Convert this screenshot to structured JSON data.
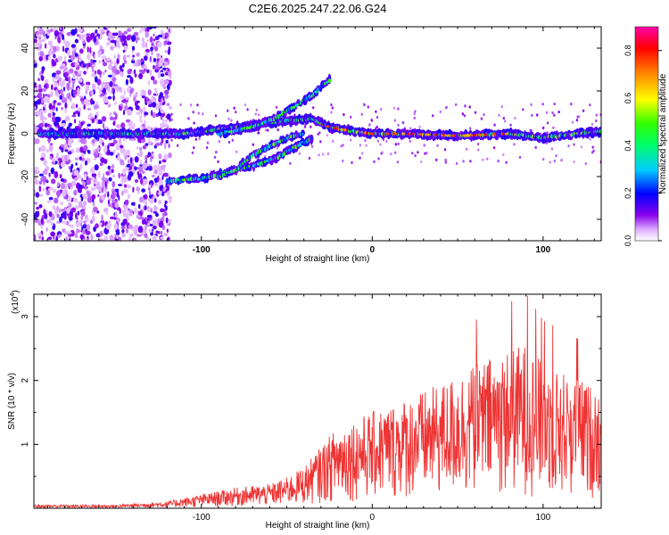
{
  "title": "C2E6.2025.247.22.06.G24",
  "chart_data": [
    {
      "type": "heatmap",
      "name": "spectrogram",
      "xlabel": "Height of straight line (km)",
      "ylabel": "Frequency (Hz)",
      "xlim": [
        -198,
        134
      ],
      "ylim": [
        -50,
        50
      ],
      "xticks": [
        -100,
        0,
        100
      ],
      "yticks": [
        -40,
        -20,
        0,
        20,
        40
      ],
      "colorbar": {
        "label": "Normalized spectral amplitude",
        "range": [
          0,
          0.9
        ],
        "ticks": [
          0.0,
          0.2,
          0.4,
          0.6,
          0.8
        ]
      },
      "tracks": [
        {
          "name": "main-line",
          "points": [
            [
              -195,
              0
            ],
            [
              -140,
              0
            ],
            [
              -110,
              0
            ],
            [
              -90,
              2
            ],
            [
              -70,
              4
            ],
            [
              -50,
              6
            ],
            [
              -35,
              7
            ],
            [
              -25,
              3
            ],
            [
              -10,
              1
            ],
            [
              0,
              0
            ],
            [
              20,
              0
            ],
            [
              50,
              -1
            ],
            [
              80,
              0
            ],
            [
              100,
              -2
            ],
            [
              120,
              0
            ],
            [
              134,
              1
            ]
          ]
        },
        {
          "name": "upper-branch",
          "points": [
            [
              -90,
              0
            ],
            [
              -70,
              3
            ],
            [
              -55,
              8
            ],
            [
              -45,
              13
            ],
            [
              -35,
              18
            ],
            [
              -30,
              22
            ],
            [
              -25,
              25
            ]
          ]
        },
        {
          "name": "lower-branch-1",
          "points": [
            [
              -120,
              -22
            ],
            [
              -100,
              -21
            ],
            [
              -85,
              -18
            ],
            [
              -70,
              -15
            ],
            [
              -55,
              -11
            ],
            [
              -45,
              -6
            ],
            [
              -35,
              -2
            ]
          ]
        },
        {
          "name": "lower-branch-2",
          "points": [
            [
              -90,
              -20
            ],
            [
              -80,
              -17
            ],
            [
              -70,
              -10
            ],
            [
              -60,
              -6
            ],
            [
              -50,
              -2
            ],
            [
              -40,
              0
            ]
          ]
        }
      ]
    },
    {
      "type": "line",
      "name": "snr",
      "xlabel": "Height of straight line (km)",
      "ylabel": "SNR (10 * v/v)",
      "scale_label": "(x10",
      "scale_exp": "4",
      "xlim": [
        -198,
        134
      ],
      "ylim": [
        0,
        3.35
      ],
      "xticks": [
        -100,
        0,
        100
      ],
      "yticks": [
        1,
        2,
        3
      ],
      "color": "#ee3333",
      "envelope": [
        [
          -198,
          0.05
        ],
        [
          -150,
          0.05
        ],
        [
          -120,
          0.1
        ],
        [
          -100,
          0.2
        ],
        [
          -80,
          0.3
        ],
        [
          -60,
          0.35
        ],
        [
          -50,
          0.45
        ],
        [
          -40,
          0.6
        ],
        [
          -30,
          0.9
        ],
        [
          -20,
          1.2
        ],
        [
          -10,
          1.3
        ],
        [
          0,
          1.4
        ],
        [
          20,
          1.6
        ],
        [
          40,
          1.8
        ],
        [
          60,
          2.1
        ],
        [
          80,
          2.3
        ],
        [
          90,
          2.4
        ],
        [
          100,
          2.1
        ],
        [
          120,
          1.9
        ],
        [
          134,
          1.7
        ]
      ]
    }
  ]
}
